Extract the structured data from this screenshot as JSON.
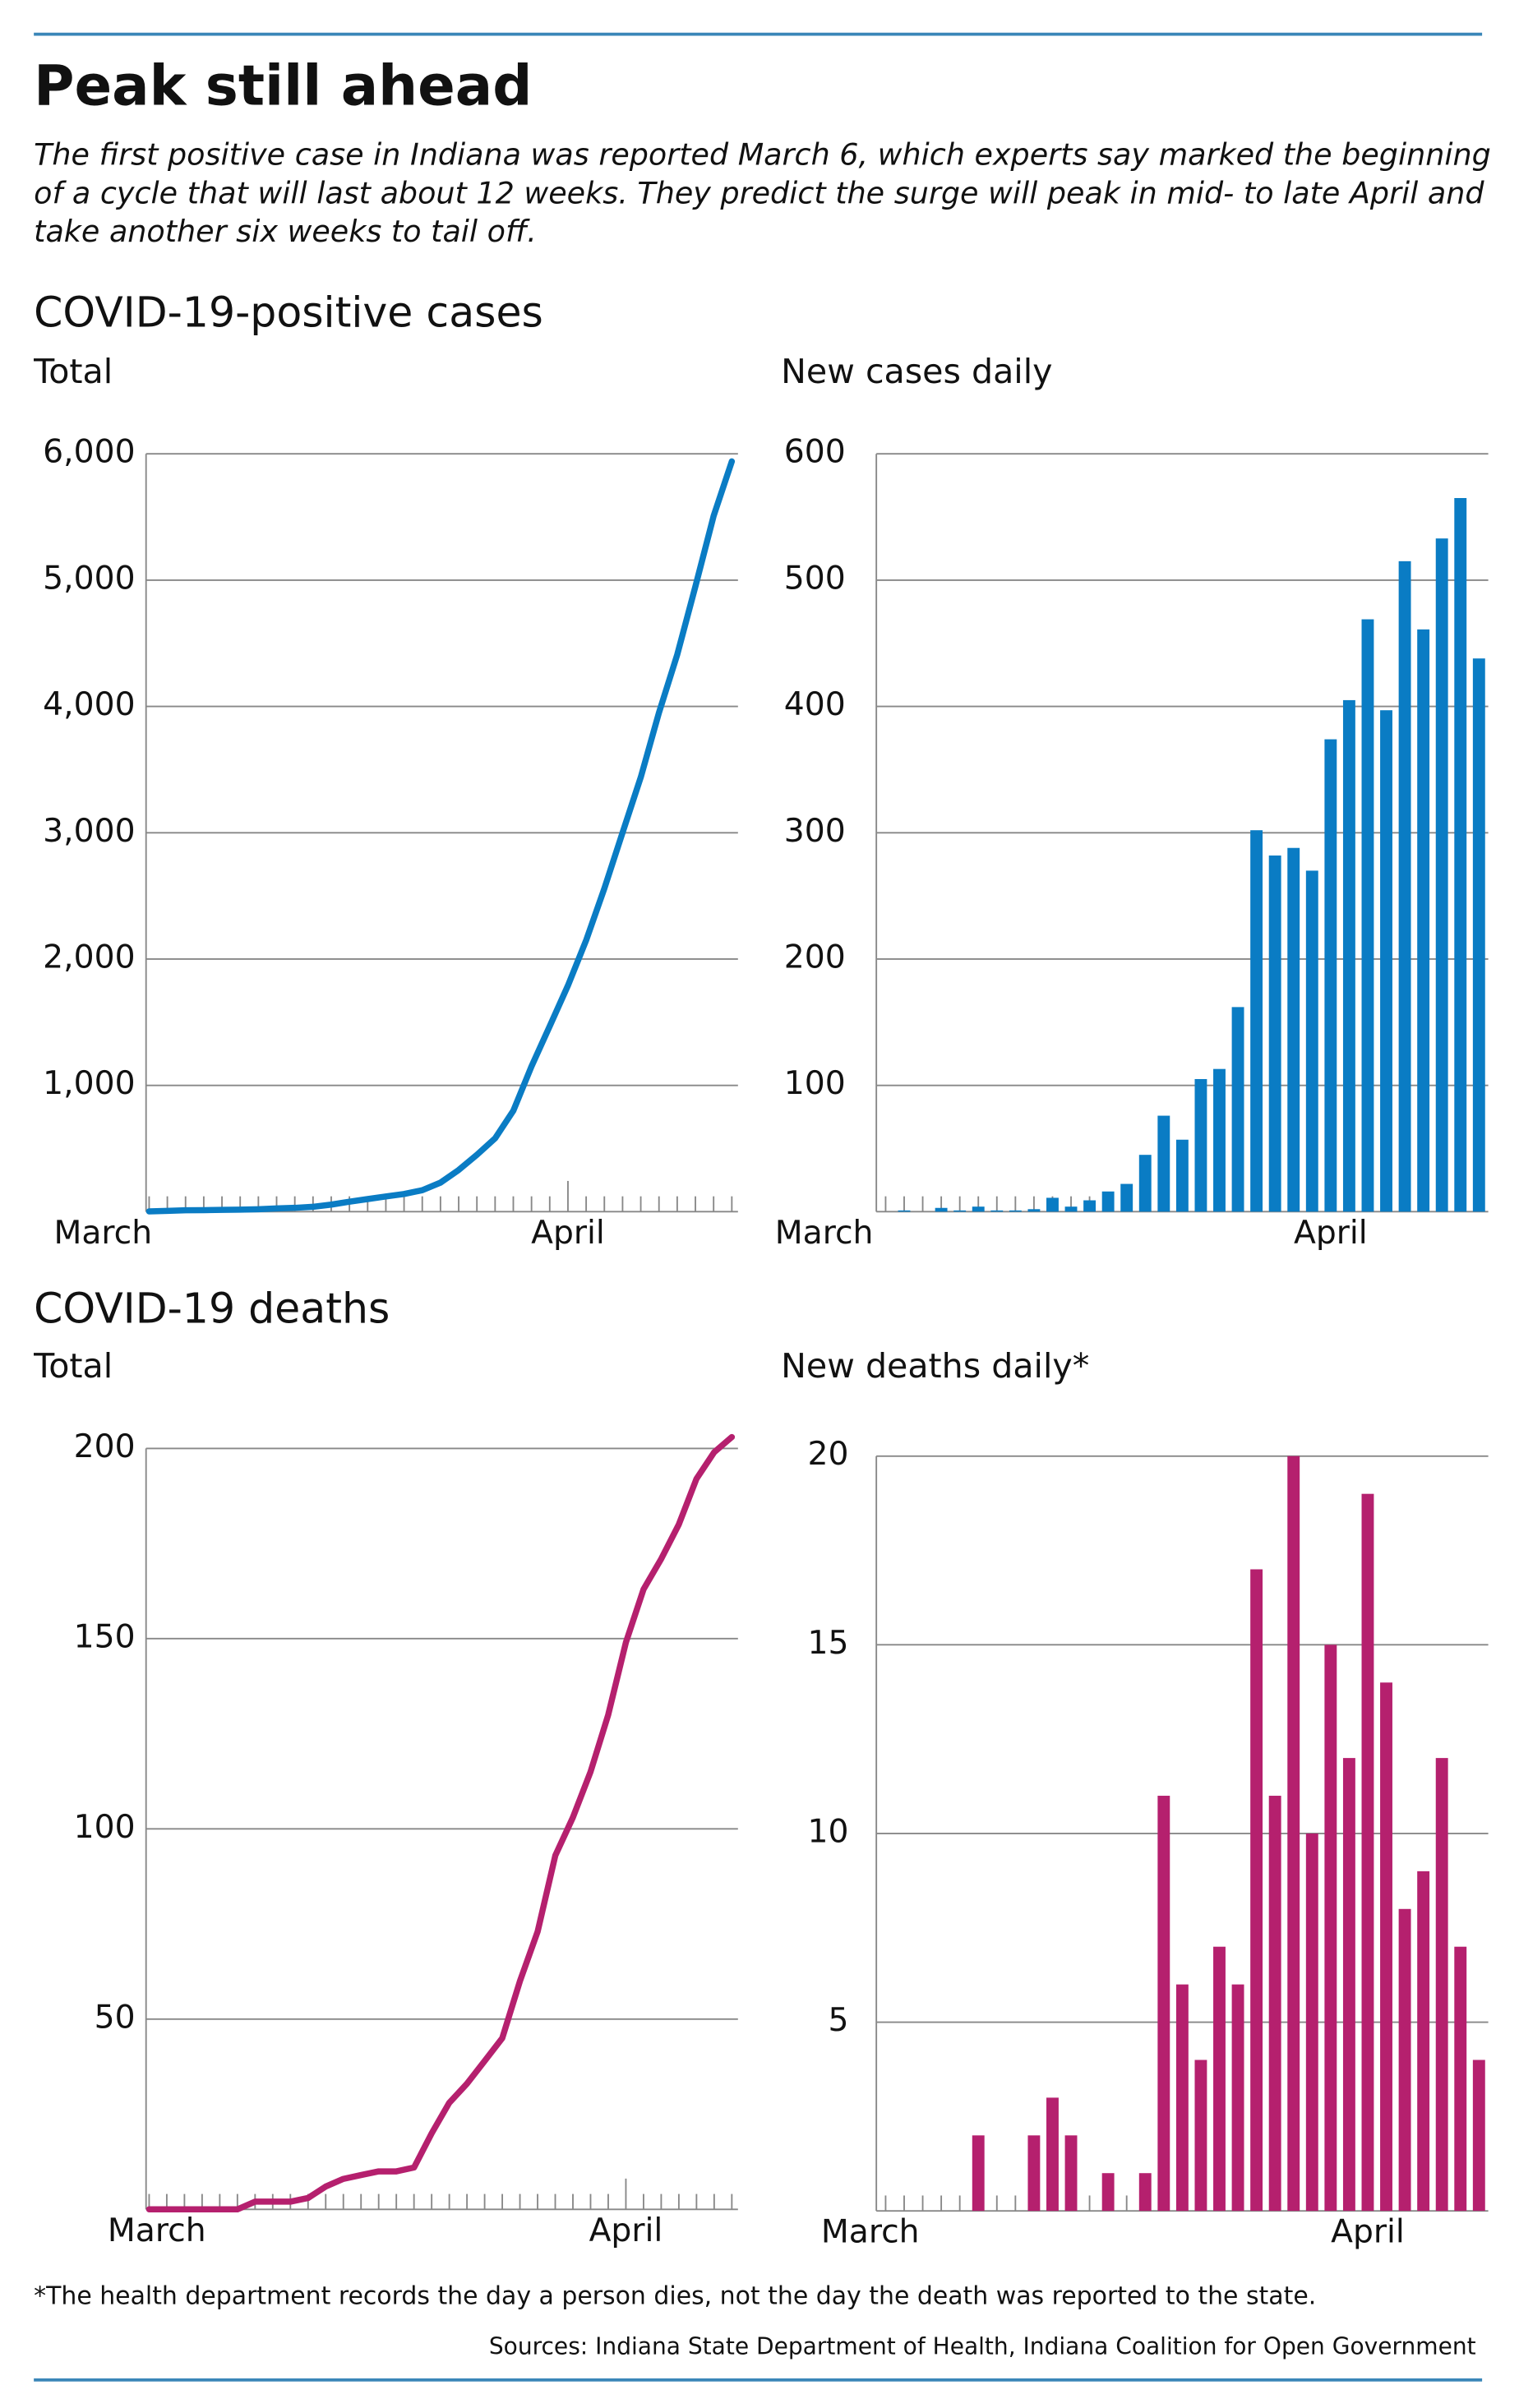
{
  "header": {
    "title": "Peak still ahead",
    "subtitle": "The first positive case in Indiana was reported March 6, which experts say marked the beginning of a cycle that will last about 12 weeks. They predict the surge will peak in mid- to late April and take another six weeks to tail off."
  },
  "sections": [
    "COVID-19-positive cases",
    "COVID-19 deaths"
  ],
  "chart_data": [
    {
      "type": "line",
      "title": "Total",
      "color": "#0a7cc4",
      "categories": [
        "March",
        null,
        null,
        null,
        null,
        null,
        null,
        null,
        null,
        null,
        null,
        null,
        null,
        null,
        null,
        null,
        null,
        null,
        null,
        null,
        null,
        null,
        null,
        "April",
        null,
        null,
        null,
        null,
        null,
        null,
        null,
        null,
        null
      ],
      "values": [
        2,
        6,
        11,
        12,
        15,
        16,
        20,
        25,
        30,
        39,
        56,
        79,
        100,
        120,
        140,
        170,
        230,
        330,
        450,
        580,
        800,
        1150,
        1470,
        1790,
        2150,
        2560,
        3000,
        3440,
        3950,
        4410,
        4950,
        5510,
        5940
      ],
      "ylim": [
        0,
        6000
      ],
      "yticks": [
        {
          "value": 1000,
          "label": "1,000"
        },
        {
          "value": 2000,
          "label": "2,000"
        },
        {
          "value": 3000,
          "label": "3,000"
        },
        {
          "value": 4000,
          "label": "4,000"
        },
        {
          "value": 5000,
          "label": "5,000"
        },
        {
          "value": 6000,
          "label": "6,000"
        }
      ],
      "grid": true
    },
    {
      "type": "bar",
      "title": "New cases daily",
      "color": "#0a7cc4",
      "categories": [
        "March",
        null,
        null,
        null,
        null,
        null,
        null,
        null,
        null,
        null,
        null,
        null,
        null,
        null,
        null,
        null,
        null,
        null,
        null,
        null,
        null,
        null,
        null,
        null,
        "April",
        null,
        null,
        null,
        null,
        null,
        null,
        null,
        null
      ],
      "values": [
        0,
        1,
        0,
        3,
        1,
        4,
        1,
        1,
        2,
        11,
        4,
        9,
        16,
        22,
        45,
        76,
        57,
        105,
        113,
        162,
        302,
        282,
        288,
        270,
        374,
        405,
        469,
        397,
        515,
        461,
        533,
        565,
        438
      ],
      "ylim": [
        0,
        600
      ],
      "yticks": [
        100,
        200,
        300,
        400,
        500,
        600
      ],
      "grid": true
    },
    {
      "type": "line",
      "title": "Total",
      "color": "#b5206e",
      "categories": [
        "March",
        null,
        null,
        null,
        null,
        null,
        null,
        null,
        null,
        null,
        null,
        null,
        null,
        null,
        null,
        null,
        null,
        null,
        null,
        null,
        null,
        null,
        null,
        null,
        null,
        null,
        null,
        "April",
        null,
        null,
        null,
        null,
        null,
        null
      ],
      "values": [
        0,
        0,
        0,
        0,
        0,
        0,
        2,
        2,
        2,
        3,
        6,
        8,
        9,
        10,
        10,
        11,
        20,
        28,
        33,
        39,
        45,
        60,
        73,
        93,
        103,
        115,
        130,
        149,
        163,
        171,
        180,
        192,
        199,
        203
      ],
      "ylim": [
        0,
        200
      ],
      "yticks": [
        50,
        100,
        150,
        200
      ],
      "grid": true
    },
    {
      "type": "bar",
      "title": "New deaths daily*",
      "color": "#b5206e",
      "categories": [
        "March",
        null,
        null,
        null,
        null,
        null,
        null,
        null,
        null,
        null,
        null,
        null,
        null,
        null,
        null,
        null,
        null,
        null,
        null,
        null,
        null,
        null,
        null,
        null,
        null,
        null,
        "April",
        null,
        null,
        null,
        null,
        null,
        null
      ],
      "values": [
        0,
        0,
        0,
        0,
        0,
        2,
        0,
        0,
        2,
        3,
        2,
        0,
        1,
        0,
        1,
        11,
        6,
        4,
        7,
        6,
        17,
        11,
        20,
        10,
        15,
        12,
        19,
        14,
        8,
        9,
        12,
        7,
        4
      ],
      "ylim": [
        0,
        20
      ],
      "yticks": [
        5,
        10,
        15,
        20
      ],
      "grid": true
    }
  ],
  "footnote": "*The health department records the day a person dies, not the day the death was reported to the state.",
  "source": "Sources: Indiana State Department of Health, Indiana Coalition for Open Government"
}
